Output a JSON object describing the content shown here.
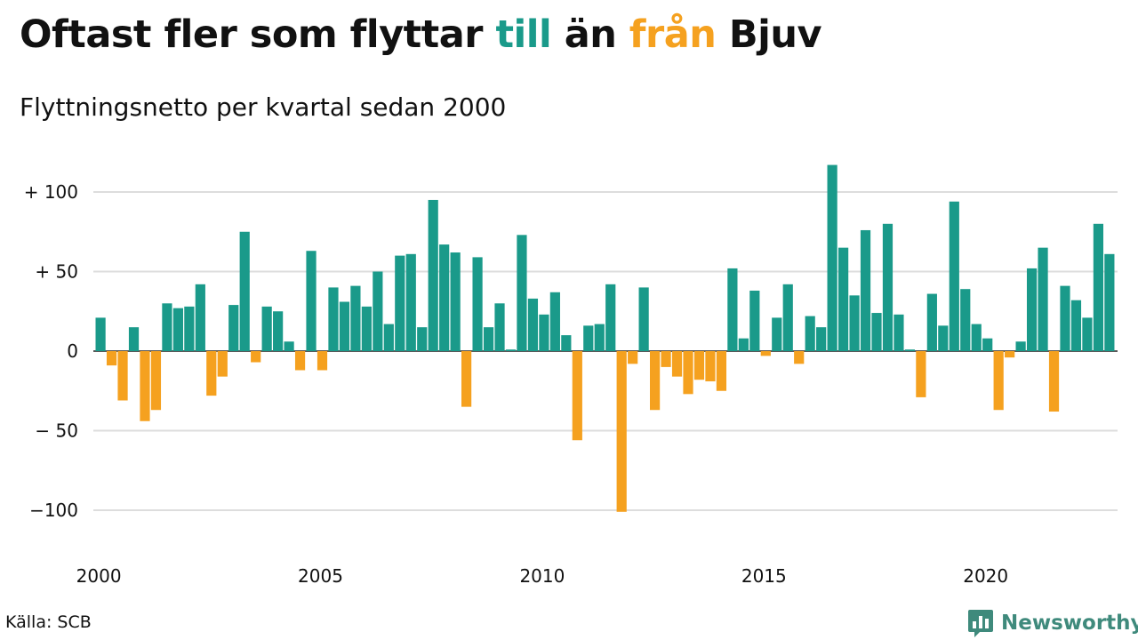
{
  "header": {
    "title_parts": [
      {
        "text": "Oftast fler som flyttar ",
        "color": "#111111"
      },
      {
        "text": "till",
        "color": "#1a9a8a"
      },
      {
        "text": " än ",
        "color": "#111111"
      },
      {
        "text": "från",
        "color": "#f5a11f"
      },
      {
        "text": " Bjuv",
        "color": "#111111"
      }
    ],
    "subtitle": "Flyttningsnetto per kvartal sedan 2000"
  },
  "footer": {
    "source": "Källa: SCB",
    "brand": "Newsworthy",
    "brand_color": "#3f8a7c"
  },
  "colors": {
    "positive": "#1a9a8a",
    "negative": "#f5a11f",
    "grid": "#dddddd"
  },
  "chart_data": {
    "type": "bar",
    "title": "",
    "xlabel": "",
    "ylabel": "",
    "ylim": [
      -100,
      117
    ],
    "yticks": [
      {
        "value": 100,
        "label": "+ 100"
      },
      {
        "value": 50,
        "label": "+  50"
      },
      {
        "value": 0,
        "label": "0"
      },
      {
        "value": -50,
        "label": "− 50"
      },
      {
        "value": -100,
        "label": "−100"
      }
    ],
    "xticks": [
      {
        "year": 2000,
        "label": "2000"
      },
      {
        "year": 2005,
        "label": "2005"
      },
      {
        "year": 2010,
        "label": "2010"
      },
      {
        "year": 2015,
        "label": "2015"
      },
      {
        "year": 2020,
        "label": "2020"
      }
    ],
    "start": {
      "year": 2000,
      "quarter": 1
    },
    "grid": true,
    "legend": "none",
    "values": [
      21,
      -9,
      -31,
      15,
      -44,
      -37,
      30,
      27,
      28,
      42,
      -28,
      -16,
      29,
      75,
      -7,
      28,
      25,
      6,
      -12,
      63,
      -12,
      40,
      31,
      41,
      28,
      50,
      17,
      60,
      61,
      15,
      95,
      67,
      62,
      -35,
      59,
      15,
      30,
      1,
      73,
      33,
      23,
      37,
      10,
      -56,
      16,
      17,
      42,
      -101,
      -8,
      40,
      -37,
      -10,
      -16,
      -27,
      -18,
      -19,
      -25,
      52,
      8,
      38,
      -3,
      21,
      42,
      -8,
      22,
      15,
      117,
      65,
      35,
      76,
      24,
      80,
      23,
      1,
      -29,
      36,
      16,
      94,
      39,
      17,
      8,
      -37,
      -4,
      6,
      52,
      65,
      -38,
      41,
      32,
      21,
      80,
      61
    ]
  }
}
